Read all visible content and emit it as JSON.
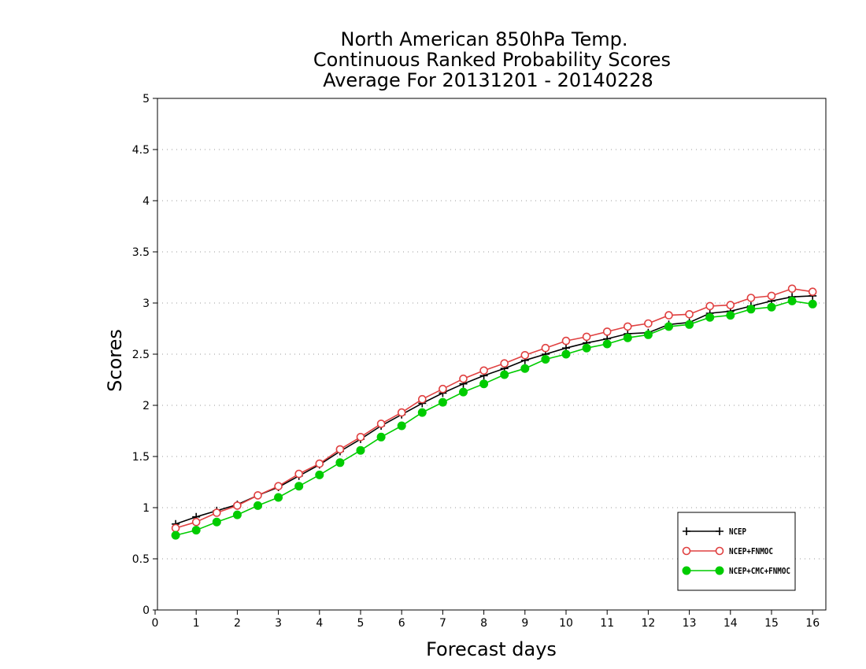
{
  "chart_data": {
    "type": "line",
    "title_lines": [
      "North American 850hPa Temp.",
      "Continuous Ranked Probability Scores",
      "Average For 20131201 - 20140228"
    ],
    "xlabel": "Forecast days",
    "ylabel": "Scores",
    "xlim": [
      0,
      16.3
    ],
    "ylim": [
      0,
      5
    ],
    "xticks": [
      0,
      1,
      2,
      3,
      4,
      5,
      6,
      7,
      8,
      9,
      10,
      11,
      12,
      13,
      14,
      15,
      16
    ],
    "yticks": [
      0,
      0.5,
      1,
      1.5,
      2,
      2.5,
      3,
      3.5,
      4,
      4.5,
      5
    ],
    "ytick_labels": [
      "0",
      "0.5",
      "1",
      "1.5",
      "2",
      "2.5",
      "3",
      "3.5",
      "4",
      "4.5",
      "5"
    ],
    "grid": "dotted horizontal",
    "legend_position": "bottom-right",
    "x": [
      0.5,
      1,
      1.5,
      2,
      2.5,
      3,
      3.5,
      4,
      4.5,
      5,
      5.5,
      6,
      6.5,
      7,
      7.5,
      8,
      8.5,
      9,
      9.5,
      10,
      10.5,
      11,
      11.5,
      12,
      12.5,
      13,
      13.5,
      14,
      14.5,
      15,
      15.5,
      16
    ],
    "series": [
      {
        "name": "NCEP",
        "color": "#000000",
        "marker": "plus",
        "values": [
          0.84,
          0.91,
          0.97,
          1.03,
          1.12,
          1.2,
          1.31,
          1.42,
          1.55,
          1.67,
          1.8,
          1.91,
          2.02,
          2.12,
          2.21,
          2.29,
          2.36,
          2.44,
          2.5,
          2.56,
          2.61,
          2.65,
          2.7,
          2.71,
          2.79,
          2.81,
          2.9,
          2.92,
          2.97,
          3.02,
          3.06,
          3.07
        ]
      },
      {
        "name": "NCEP+FNMOC",
        "color": "#e04040",
        "marker": "open-circle",
        "values": [
          0.8,
          0.86,
          0.95,
          1.02,
          1.12,
          1.21,
          1.33,
          1.43,
          1.57,
          1.69,
          1.82,
          1.93,
          2.06,
          2.16,
          2.26,
          2.34,
          2.41,
          2.49,
          2.56,
          2.63,
          2.67,
          2.72,
          2.77,
          2.8,
          2.88,
          2.89,
          2.97,
          2.98,
          3.05,
          3.07,
          3.14,
          3.11
        ]
      },
      {
        "name": "NCEP+CMC+FNMOC",
        "color": "#00cc00",
        "marker": "filled-circle",
        "values": [
          0.73,
          0.78,
          0.86,
          0.93,
          1.02,
          1.1,
          1.21,
          1.32,
          1.44,
          1.56,
          1.69,
          1.8,
          1.93,
          2.03,
          2.13,
          2.21,
          2.3,
          2.36,
          2.45,
          2.5,
          2.56,
          2.6,
          2.66,
          2.69,
          2.77,
          2.79,
          2.86,
          2.88,
          2.94,
          2.96,
          3.02,
          2.99
        ]
      }
    ]
  }
}
